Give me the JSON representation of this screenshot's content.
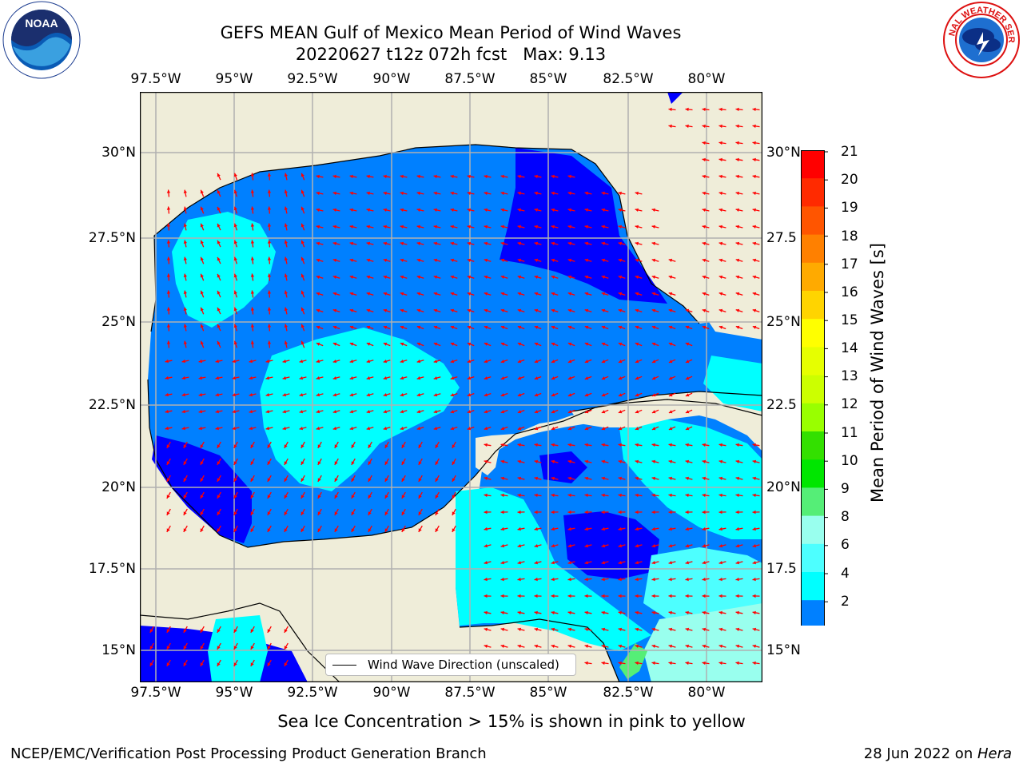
{
  "title": {
    "line1": "GEFS MEAN Gulf of Mexico Mean Period of Wind Waves",
    "line2": "20220627 t12z 072h fcst   Max: 9.13"
  },
  "axes": {
    "lon_top": [
      "97.5°W",
      "95°W",
      "92.5°W",
      "90°W",
      "87.5°W",
      "85°W",
      "82.5°W",
      "80°W"
    ],
    "lon_bottom": [
      "97.5°W",
      "95°W",
      "92.5°W",
      "90°W",
      "87.5°W",
      "85°W",
      "82.5°W",
      "80°W"
    ],
    "lat_left": [
      "30°N",
      "27.5°N",
      "25°N",
      "22.5°N",
      "20°N",
      "17.5°N",
      "15°N"
    ],
    "lat_right": [
      "30°N",
      "27.5",
      "25°N",
      "22.5",
      "20°N",
      "17.5",
      "15°N"
    ]
  },
  "colorbar": {
    "title": "Mean Period of Wind Waves [s]",
    "labels": [
      "21",
      "20",
      "19",
      "18",
      "17",
      "16",
      "15",
      "14",
      "13",
      "12",
      "11",
      "10",
      "9",
      "8",
      "6",
      "4",
      "2"
    ],
    "colors": [
      "#ff0000",
      "#ff2a00",
      "#ff5500",
      "#ff8000",
      "#ffaa00",
      "#ffd400",
      "#ffff00",
      "#e6ff00",
      "#ccff00",
      "#99ff00",
      "#33e000",
      "#00e600",
      "#55ee77",
      "#99ffee",
      "#4dffff",
      "#00ffff",
      "#0080ff"
    ],
    "extend_color": "#0000ff"
  },
  "legend": {
    "label": "Wind Wave Direction (unscaled)"
  },
  "note": "Sea Ice Concentration > 15% is shown in pink to yellow",
  "footer": {
    "left": "NCEP/EMC/Verification Post Processing Product Generation Branch",
    "right_prefix": "28 Jun 2022 on ",
    "right_host": "Hera"
  },
  "logos": {
    "left": "NOAA",
    "right": "NATIONAL WEATHER SERVICE"
  },
  "colors": {
    "land": "#efedd9",
    "ocean_2_4": "#0080ff",
    "ocean_lt2": "#0000ff",
    "ocean_4_6": "#00ffff",
    "ocean_6_8": "#4dffff",
    "ocean_8_9": "#99ffee",
    "arrow": "#ff0000",
    "grid": "#b0b0b0"
  }
}
